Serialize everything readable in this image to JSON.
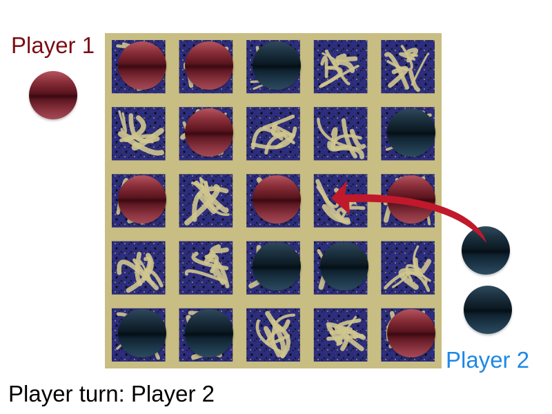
{
  "players": {
    "player1": {
      "label": "Player 1",
      "color": "#7a0e14"
    },
    "player2": {
      "label": "Player 2",
      "color": "#1e88e5"
    }
  },
  "turn": {
    "text": "Player turn: Player 2",
    "prefix": "Player turn:",
    "current": "Player 2"
  },
  "board": {
    "rows": 5,
    "cols": 5,
    "background_color": "#c8bd83",
    "glyph_color": "#2c2d7c",
    "cells": [
      [
        "red",
        "red",
        "blue",
        null,
        null
      ],
      [
        null,
        "red",
        null,
        null,
        "blue"
      ],
      [
        "red",
        null,
        "red",
        null,
        "red"
      ],
      [
        null,
        null,
        "blue",
        "blue",
        null
      ],
      [
        "blue",
        "blue",
        null,
        null,
        "red"
      ]
    ]
  },
  "reserve": {
    "player1": [
      "red"
    ],
    "player2": [
      "blue",
      "blue"
    ]
  },
  "stone_colors": {
    "red": "#6b1822",
    "blue": "#0f2230"
  },
  "move_arrow": {
    "color": "#c0192b",
    "from": "player2 reserve stone 1",
    "to": {
      "row": 2,
      "col": 3
    }
  }
}
